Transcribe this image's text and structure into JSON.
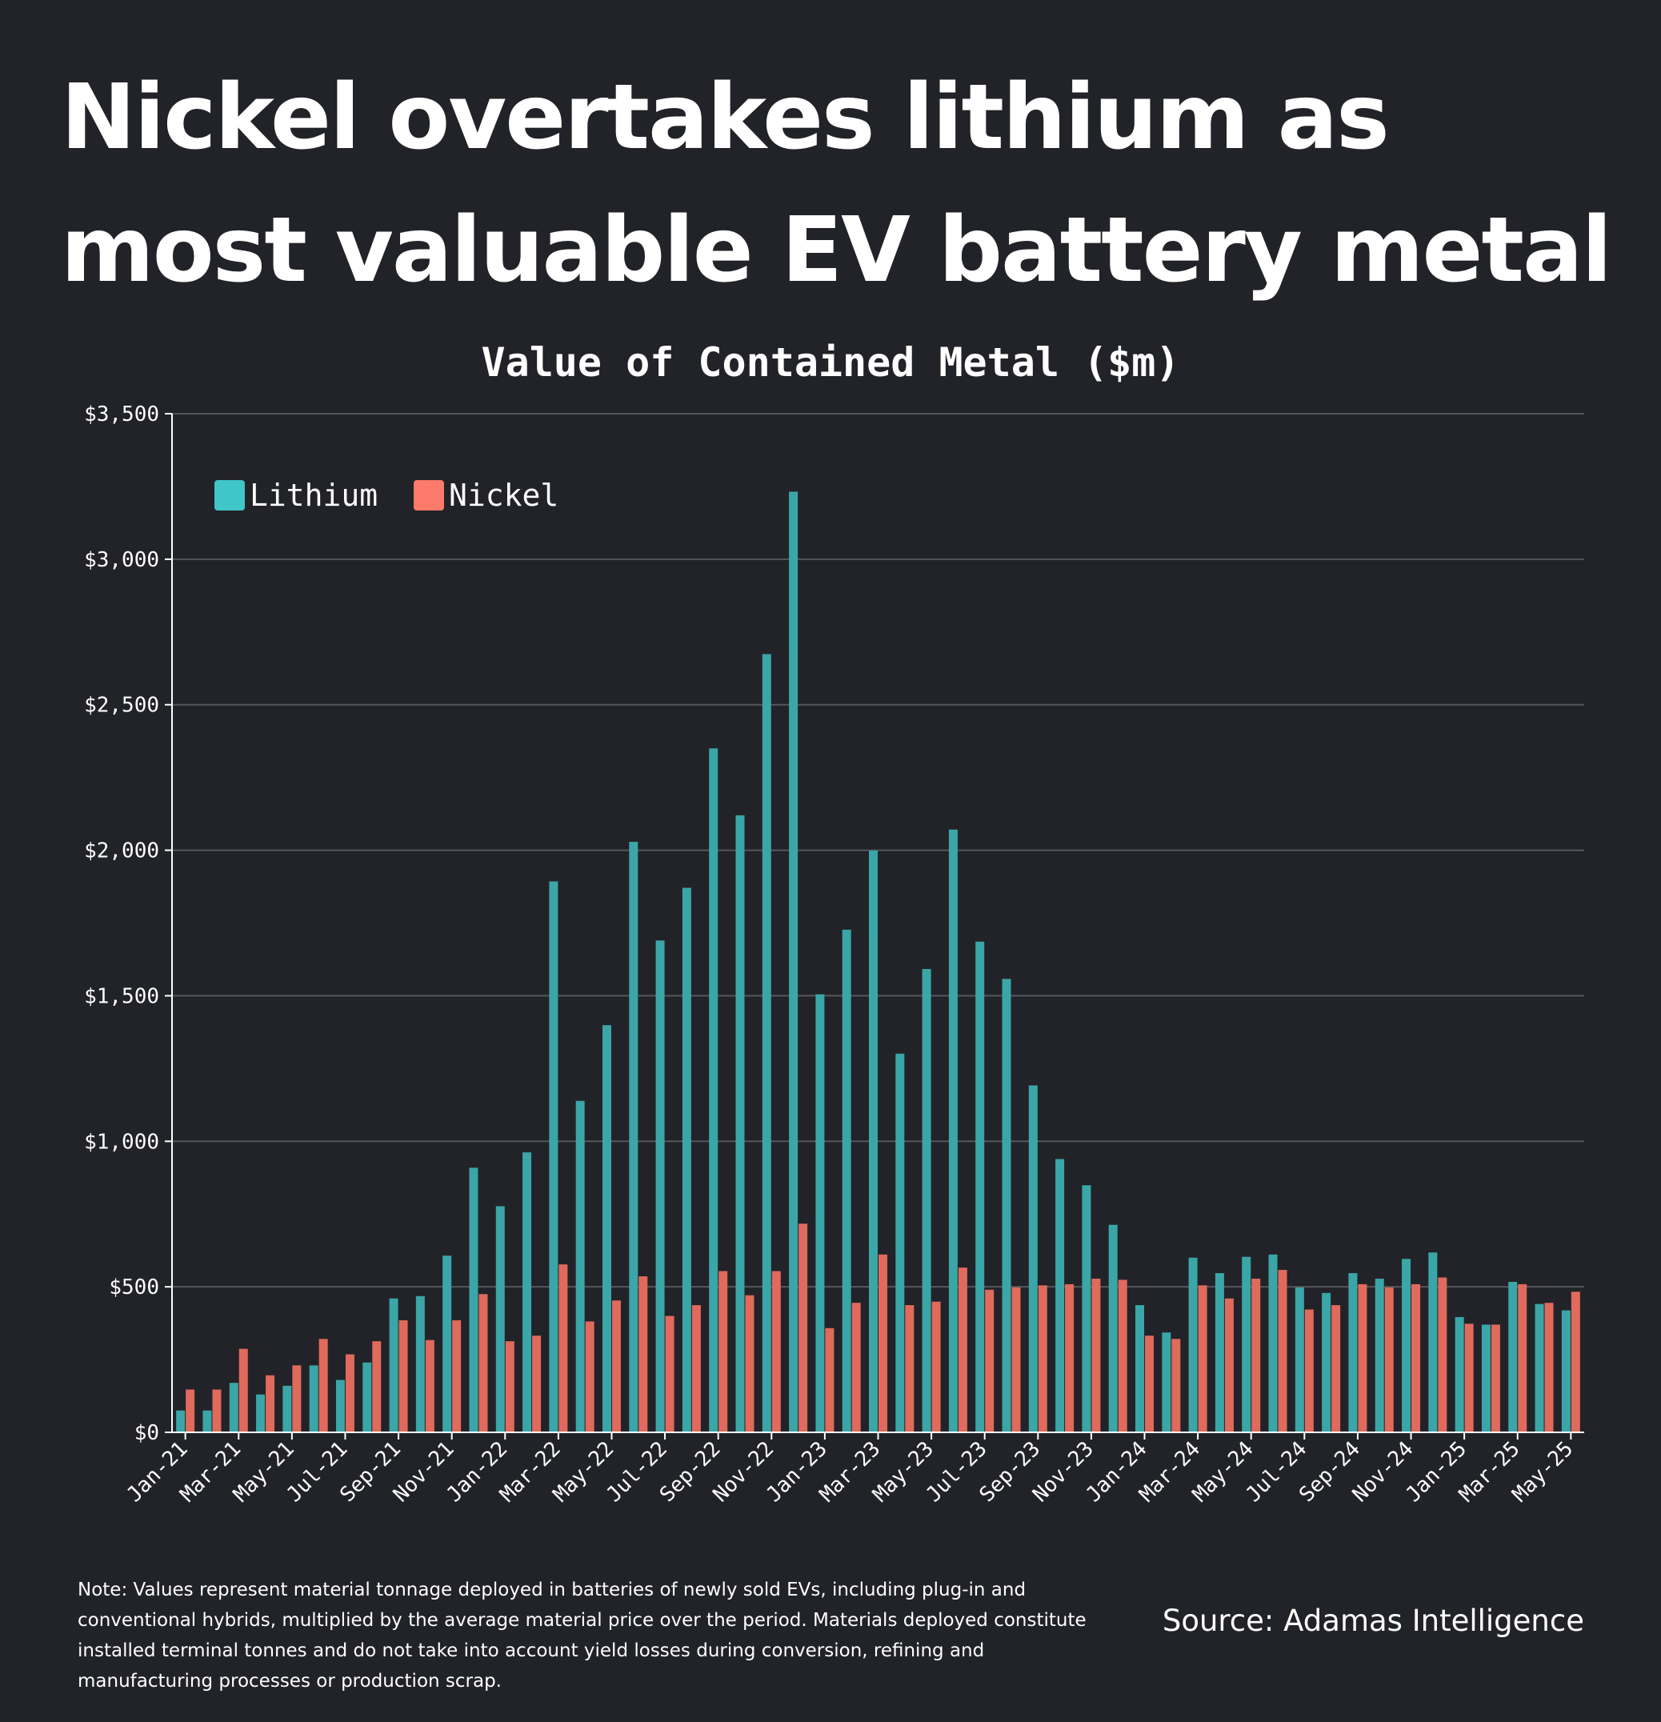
{
  "title": "Nickel overtakes lithium as most valuable EV battery metal",
  "note": "Note: Values represent material tonnage deployed in batteries of newly sold EVs, including plug-in and conventional hybrids, multiplied by the average material price over the period. Materials deployed constitute installed terminal tonnes and do not take into account yield losses during conversion, refining and manufacturing processes or production scrap.",
  "source": "Source: Adamas Intelligence",
  "chart_data": {
    "type": "bar",
    "title": "Value of Contained Metal ($m)",
    "xlabel": "",
    "ylabel": "",
    "ylim": [
      0,
      3500
    ],
    "yticks": [
      0,
      500,
      1000,
      1500,
      2000,
      2500,
      3000,
      3500
    ],
    "ytick_labels": [
      "$0",
      "$500",
      "$1,000",
      "$1,500",
      "$2,000",
      "$2,500",
      "$3,000",
      "$3,500"
    ],
    "grid": true,
    "legend_position": "top-left",
    "categories": [
      "Jan-21",
      "Feb-21",
      "Mar-21",
      "Apr-21",
      "May-21",
      "Jun-21",
      "Jul-21",
      "Aug-21",
      "Sep-21",
      "Oct-21",
      "Nov-21",
      "Dec-21",
      "Jan-22",
      "Feb-22",
      "Mar-22",
      "Apr-22",
      "May-22",
      "Jun-22",
      "Jul-22",
      "Aug-22",
      "Sep-22",
      "Oct-22",
      "Nov-22",
      "Dec-22",
      "Jan-23",
      "Feb-23",
      "Mar-23",
      "Apr-23",
      "May-23",
      "Jun-23",
      "Jul-23",
      "Aug-23",
      "Sep-23",
      "Oct-23",
      "Nov-23",
      "Dec-23",
      "Jan-24",
      "Feb-24",
      "Mar-24",
      "Apr-24",
      "May-24",
      "Jun-24",
      "Jul-24",
      "Aug-24",
      "Sep-24",
      "Oct-24",
      "Nov-24",
      "Dec-24",
      "Jan-25",
      "Feb-25",
      "Mar-25",
      "Apr-25",
      "May-25"
    ],
    "xtick_labels": [
      "Jan-21",
      "Mar-21",
      "May-21",
      "Jul-21",
      "Sep-21",
      "Nov-21",
      "Jan-22",
      "Mar-22",
      "May-22",
      "Jul-22",
      "Sep-22",
      "Nov-22",
      "Jan-23",
      "Mar-23",
      "May-23",
      "Jul-23",
      "Sep-23",
      "Nov-23",
      "Jan-24",
      "Mar-24",
      "May-24",
      "Jul-24",
      "Sep-24",
      "Nov-24",
      "Jan-25",
      "Mar-25",
      "May-25"
    ],
    "series": [
      {
        "name": "Lithium",
        "color": "#3fc6c8",
        "bar_color": "#3aa6a8",
        "values": [
          75,
          75,
          170,
          130,
          160,
          230,
          180,
          240,
          460,
          468,
          607,
          909,
          777,
          962,
          1893,
          1139,
          1399,
          2029,
          1690,
          1871,
          2350,
          2120,
          2674,
          3232,
          1505,
          1727,
          1999,
          1301,
          1592,
          2071,
          1686,
          1558,
          1192,
          939,
          849,
          713,
          437,
          343,
          600,
          547,
          603,
          611,
          498,
          479,
          547,
          528,
          596,
          618,
          396,
          370,
          517,
          441,
          419
        ]
      },
      {
        "name": "Nickel",
        "color": "#fb7a6a",
        "bar_color": "#e06a5c",
        "values": [
          147,
          147,
          287,
          196,
          230,
          321,
          268,
          313,
          385,
          317,
          385,
          475,
          313,
          332,
          577,
          381,
          453,
          536,
          400,
          437,
          554,
          471,
          554,
          717,
          358,
          445,
          611,
          437,
          449,
          566,
          490,
          498,
          505,
          509,
          528,
          524,
          332,
          321,
          505,
          460,
          528,
          558,
          422,
          437,
          509,
          498,
          509,
          532,
          373,
          370,
          509,
          445,
          483
        ]
      }
    ]
  }
}
